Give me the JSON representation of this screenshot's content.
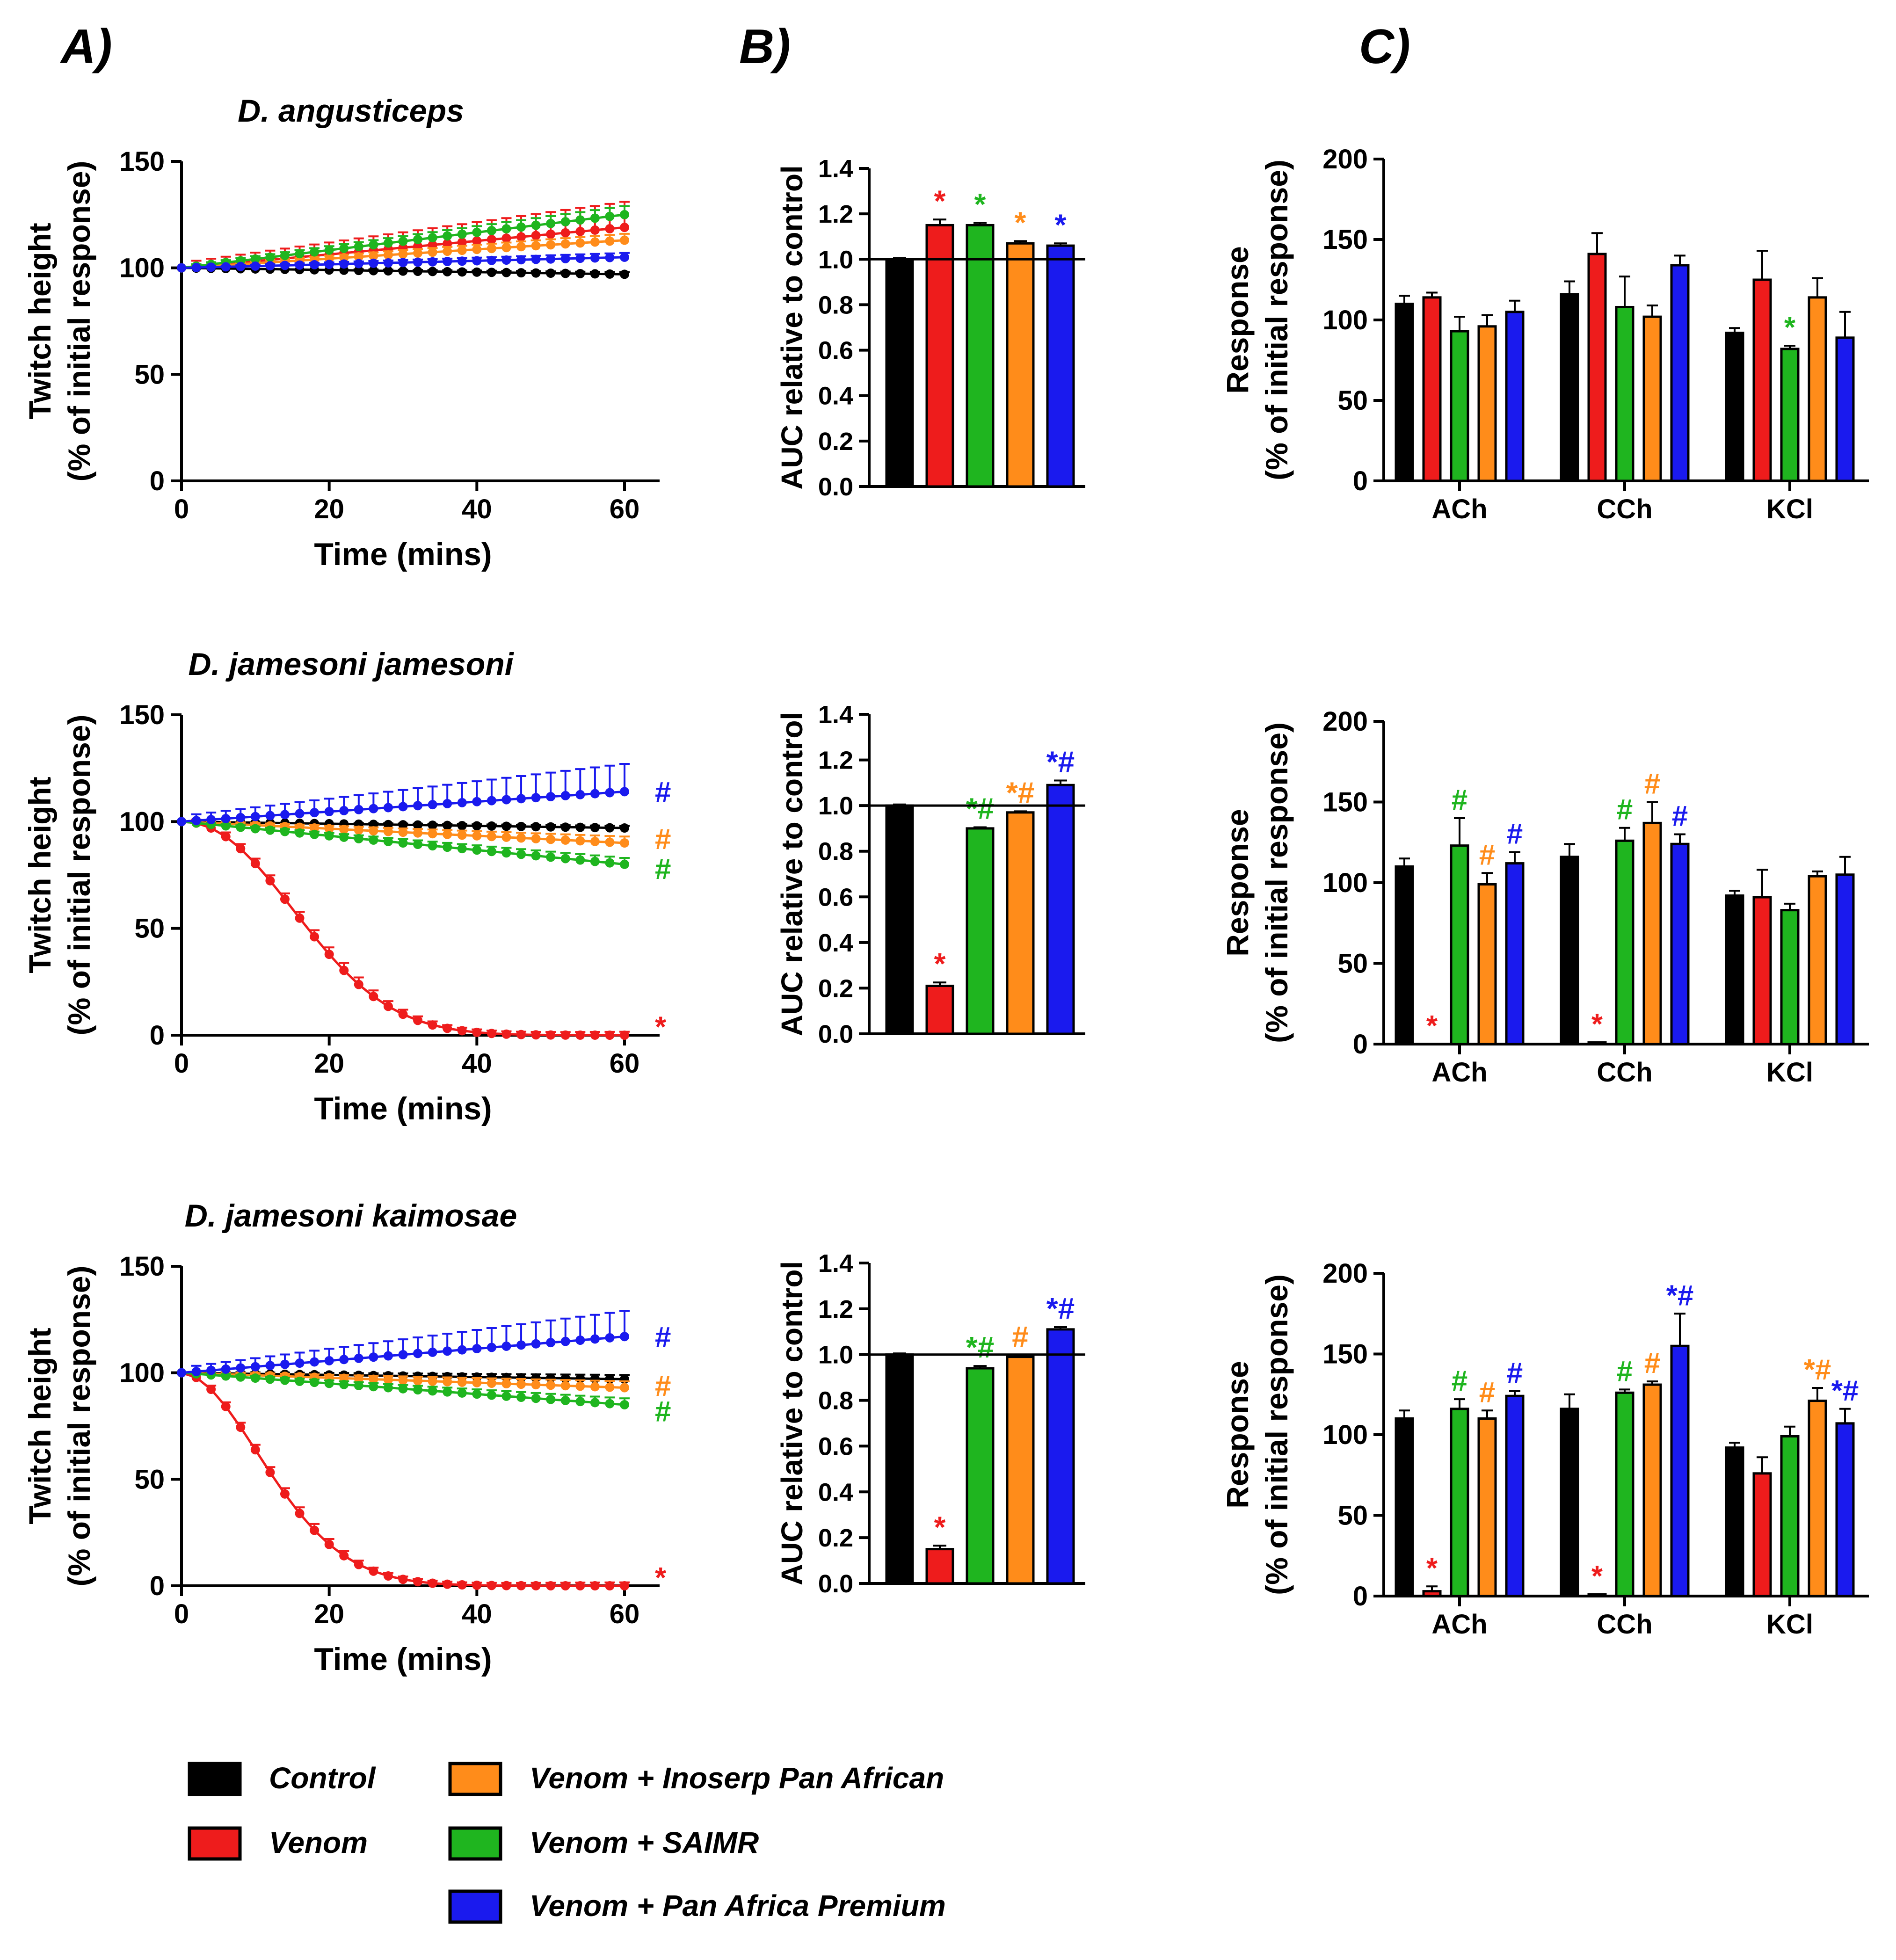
{
  "figure": {
    "panel_labels": [
      "A)",
      "B)",
      "C)"
    ]
  },
  "colors": {
    "Control": "#000000",
    "Venom": "#ee1c1c",
    "Venom + SAIMR": "#1fb51f",
    "Venom + Inoserp Pan African": "#ff8c1a",
    "Venom + Pan Africa Premium": "#1a1aee"
  },
  "legend": {
    "entries": [
      "Control",
      "Venom",
      "Venom + Inoserp Pan African",
      "Venom + SAIMR",
      "Venom + Pan Africa Premium"
    ]
  },
  "chart_data": [
    {
      "id": "A1",
      "type": "line",
      "title": "D. angusticeps",
      "xlabel": "Time (mins)",
      "ylabel": [
        "Twitch height",
        "(% of initial response)"
      ],
      "xlim": [
        0,
        60
      ],
      "ylim": [
        0,
        150
      ],
      "xticks": [
        "0",
        "20",
        "40",
        "60"
      ],
      "yticks": [
        "0",
        "50",
        "100",
        "150"
      ],
      "series": [
        {
          "name": "Control",
          "start": 100,
          "end": 97,
          "shape": "linear",
          "err": 1
        },
        {
          "name": "Venom",
          "start": 100,
          "end": 119,
          "shape": "linear",
          "err": 12
        },
        {
          "name": "Venom + Inoserp Pan African",
          "start": 100,
          "end": 113,
          "shape": "linear",
          "err": 3
        },
        {
          "name": "Venom + SAIMR",
          "start": 100,
          "end": 125,
          "shape": "linear",
          "err": 4
        },
        {
          "name": "Venom + Pan Africa Premium",
          "start": 100,
          "end": 105,
          "shape": "linear",
          "err": 2
        }
      ],
      "end_marks": []
    },
    {
      "id": "A2",
      "type": "line",
      "title": "D. jamesoni jamesoni",
      "xlabel": "Time (mins)",
      "ylabel": [
        "Twitch height",
        "(% of initial response)"
      ],
      "xlim": [
        0,
        60
      ],
      "ylim": [
        0,
        150
      ],
      "xticks": [
        "0",
        "20",
        "40",
        "60"
      ],
      "yticks": [
        "0",
        "50",
        "100",
        "150"
      ],
      "series": [
        {
          "name": "Control",
          "start": 100,
          "end": 97,
          "shape": "linear",
          "err": 1
        },
        {
          "name": "Venom",
          "start": 100,
          "end": 0,
          "shape": "decay",
          "k": 0.00155,
          "p": 2.15,
          "err": 7
        },
        {
          "name": "Venom + Inoserp Pan African",
          "start": 100,
          "end": 90,
          "shape": "linear",
          "err": 3
        },
        {
          "name": "Venom + SAIMR",
          "start": 100,
          "end": 80,
          "shape": "linear",
          "err": 3
        },
        {
          "name": "Venom + Pan Africa Premium",
          "start": 100,
          "end": 114,
          "shape": "linear",
          "err": 13
        }
      ],
      "end_marks": [
        {
          "text": "#",
          "series": "Venom + Pan Africa Premium",
          "y": 114
        },
        {
          "text": "#",
          "series": "Venom + Inoserp Pan African",
          "y": 92
        },
        {
          "text": "#",
          "series": "Venom + SAIMR",
          "y": 78
        },
        {
          "text": "*",
          "series": "Venom",
          "y": 4
        }
      ]
    },
    {
      "id": "A3",
      "type": "line",
      "title": "D. jamesoni kaimosae",
      "xlabel": "Time (mins)",
      "ylabel": [
        "Twitch height",
        "(% of initial response)"
      ],
      "xlim": [
        0,
        60
      ],
      "ylim": [
        0,
        150
      ],
      "xticks": [
        "0",
        "20",
        "40",
        "60"
      ],
      "yticks": [
        "0",
        "50",
        "100",
        "150"
      ],
      "series": [
        {
          "name": "Control",
          "start": 100,
          "end": 97,
          "shape": "linear",
          "err": 2
        },
        {
          "name": "Venom",
          "start": 100,
          "end": 0,
          "shape": "decay",
          "k": 0.00605,
          "p": 1.87,
          "err": 7
        },
        {
          "name": "Venom + Inoserp Pan African",
          "start": 100,
          "end": 93,
          "shape": "linear",
          "err": 3
        },
        {
          "name": "Venom + SAIMR",
          "start": 100,
          "end": 85,
          "shape": "linear",
          "err": 3
        },
        {
          "name": "Venom + Pan Africa Premium",
          "start": 100,
          "end": 117,
          "shape": "linear",
          "err": 12
        }
      ],
      "end_marks": [
        {
          "text": "#",
          "series": "Venom + Pan Africa Premium",
          "y": 117
        },
        {
          "text": "#",
          "series": "Venom + Inoserp Pan African",
          "y": 94
        },
        {
          "text": "#",
          "series": "Venom + SAIMR",
          "y": 82
        },
        {
          "text": "*",
          "series": "Venom",
          "y": 4
        }
      ]
    },
    {
      "id": "B1",
      "type": "bar",
      "ylabel": "AUC relative to control",
      "ylim": [
        0,
        1.4
      ],
      "yticks": [
        "0.0",
        "0.2",
        "0.4",
        "0.6",
        "0.8",
        "1.0",
        "1.2",
        "1.4"
      ],
      "refline": 1.0,
      "bars": [
        {
          "name": "Control",
          "value": 1.0,
          "err": 0.005,
          "mark": ""
        },
        {
          "name": "Venom",
          "value": 1.15,
          "err": 0.025,
          "mark": "*"
        },
        {
          "name": "Venom + SAIMR",
          "value": 1.15,
          "err": 0.01,
          "mark": "*"
        },
        {
          "name": "Venom + Inoserp Pan African",
          "value": 1.07,
          "err": 0.01,
          "mark": "*"
        },
        {
          "name": "Venom + Pan Africa Premium",
          "value": 1.06,
          "err": 0.01,
          "mark": "*"
        }
      ]
    },
    {
      "id": "B2",
      "type": "bar",
      "ylabel": "AUC relative to control",
      "ylim": [
        0,
        1.4
      ],
      "yticks": [
        "0.0",
        "0.2",
        "0.4",
        "0.6",
        "0.8",
        "1.0",
        "1.2",
        "1.4"
      ],
      "refline": 1.0,
      "bars": [
        {
          "name": "Control",
          "value": 1.0,
          "err": 0.005,
          "mark": ""
        },
        {
          "name": "Venom",
          "value": 0.21,
          "err": 0.015,
          "mark": "*"
        },
        {
          "name": "Venom + SAIMR",
          "value": 0.9,
          "err": 0.005,
          "mark": "*#"
        },
        {
          "name": "Venom + Inoserp Pan African",
          "value": 0.97,
          "err": 0.005,
          "mark": "*#"
        },
        {
          "name": "Venom + Pan Africa Premium",
          "value": 1.09,
          "err": 0.02,
          "mark": "*#"
        }
      ]
    },
    {
      "id": "B3",
      "type": "bar",
      "ylabel": "AUC relative to control",
      "ylim": [
        0,
        1.4
      ],
      "yticks": [
        "0.0",
        "0.2",
        "0.4",
        "0.6",
        "0.8",
        "1.0",
        "1.2",
        "1.4"
      ],
      "refline": 1.0,
      "bars": [
        {
          "name": "Control",
          "value": 1.0,
          "err": 0.005,
          "mark": ""
        },
        {
          "name": "Venom",
          "value": 0.15,
          "err": 0.015,
          "mark": "*"
        },
        {
          "name": "Venom + SAIMR",
          "value": 0.94,
          "err": 0.01,
          "mark": "*#"
        },
        {
          "name": "Venom + Inoserp Pan African",
          "value": 0.99,
          "err": 0.005,
          "mark": "#"
        },
        {
          "name": "Venom + Pan Africa Premium",
          "value": 1.11,
          "err": 0.01,
          "mark": "*#"
        }
      ]
    },
    {
      "id": "C1",
      "type": "grouped_bar",
      "ylabel": [
        "Response",
        "(% of initial response)"
      ],
      "ylim": [
        0,
        200
      ],
      "yticks": [
        "0",
        "50",
        "100",
        "150",
        "200"
      ],
      "categories": [
        "ACh",
        "CCh",
        "KCl"
      ],
      "series_order": [
        "Control",
        "Venom",
        "Venom + SAIMR",
        "Venom + Inoserp Pan African",
        "Venom + Pan Africa Premium"
      ],
      "values": [
        [
          110,
          114,
          93,
          96,
          105
        ],
        [
          116,
          141,
          108,
          102,
          134
        ],
        [
          92,
          125,
          82,
          114,
          89
        ]
      ],
      "errors": [
        [
          5,
          3,
          9,
          7,
          7
        ],
        [
          8,
          13,
          19,
          7,
          6
        ],
        [
          3,
          18,
          2,
          12,
          16
        ]
      ],
      "marks": [
        [
          "",
          "",
          "",
          "",
          ""
        ],
        [
          "",
          "",
          "",
          "",
          ""
        ],
        [
          "",
          "",
          "*",
          "",
          ""
        ]
      ]
    },
    {
      "id": "C2",
      "type": "grouped_bar",
      "ylabel": [
        "Response",
        "(% of initial response)"
      ],
      "ylim": [
        0,
        200
      ],
      "yticks": [
        "0",
        "50",
        "100",
        "150",
        "200"
      ],
      "categories": [
        "ACh",
        "CCh",
        "KCl"
      ],
      "series_order": [
        "Control",
        "Venom",
        "Venom + SAIMR",
        "Venom + Inoserp Pan African",
        "Venom + Pan Africa Premium"
      ],
      "values": [
        [
          110,
          0,
          123,
          99,
          112
        ],
        [
          116,
          1,
          126,
          137,
          124
        ],
        [
          92,
          91,
          83,
          104,
          105
        ]
      ],
      "errors": [
        [
          5,
          0,
          17,
          7,
          7
        ],
        [
          8,
          0,
          8,
          13,
          6
        ],
        [
          3,
          17,
          4,
          3,
          11
        ]
      ],
      "marks": [
        [
          "",
          "*",
          "#",
          "#",
          "#"
        ],
        [
          "",
          "*",
          "#",
          "#",
          "#"
        ],
        [
          "",
          "",
          "",
          "",
          ""
        ]
      ]
    },
    {
      "id": "C3",
      "type": "grouped_bar",
      "ylabel": [
        "Response",
        "(% of initial response)"
      ],
      "ylim": [
        0,
        200
      ],
      "yticks": [
        "0",
        "50",
        "100",
        "150",
        "200"
      ],
      "categories": [
        "ACh",
        "CCh",
        "KCl"
      ],
      "series_order": [
        "Control",
        "Venom",
        "Venom + SAIMR",
        "Venom + Inoserp Pan African",
        "Venom + Pan Africa Premium"
      ],
      "values": [
        [
          110,
          3,
          116,
          110,
          124
        ],
        [
          116,
          1,
          126,
          131,
          155
        ],
        [
          92,
          76,
          99,
          121,
          107
        ]
      ],
      "errors": [
        [
          5,
          3,
          6,
          5,
          3
        ],
        [
          9,
          0,
          2,
          2,
          20
        ],
        [
          3,
          10,
          6,
          8,
          9
        ]
      ],
      "marks": [
        [
          "",
          "*",
          "#",
          "#",
          "#"
        ],
        [
          "",
          "*",
          "#",
          "#",
          "*#"
        ],
        [
          "",
          "",
          "",
          "*#",
          "*#"
        ]
      ]
    }
  ]
}
